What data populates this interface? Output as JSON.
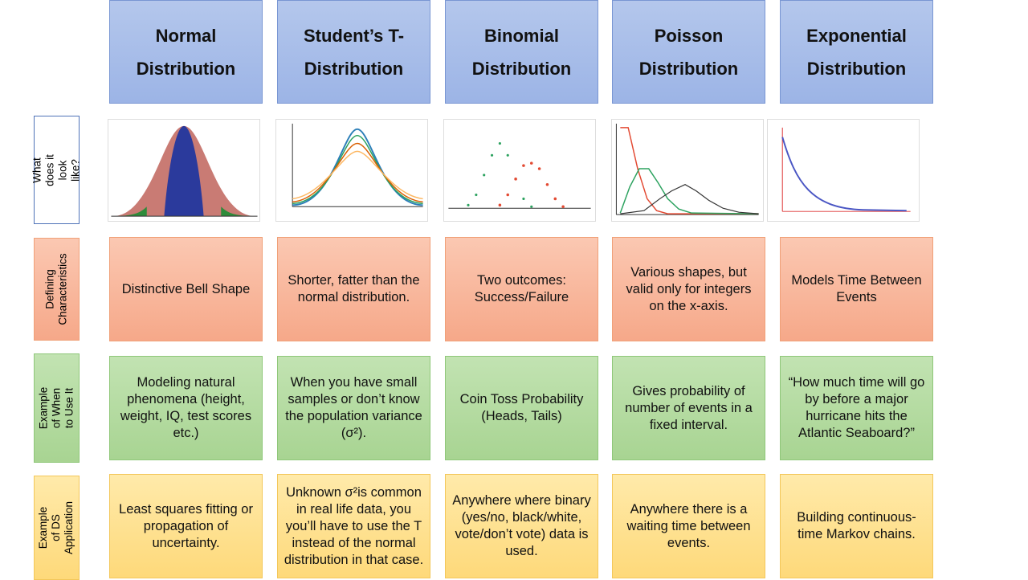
{
  "row_labels": [
    "What does it look like?",
    "Defining Characteristics",
    "Example of When to Use It",
    "Example of DS Application"
  ],
  "columns": [
    {
      "header": [
        "Normal",
        "Distribution"
      ],
      "characteristics": "Distinctive Bell Shape",
      "example": "Modeling natural phenomena (height, weight, IQ, test scores etc.)",
      "application": "Least squares fitting or propagation of uncertainty."
    },
    {
      "header": [
        "Student’s T-",
        "Distribution"
      ],
      "characteristics": "Shorter, fatter than the normal distribution.",
      "example": "When you have small samples or don’t know the population variance (σ²).",
      "application": "Unknown σ²is common in real life data, you you’ll have to use the T instead of the normal distribution in that case."
    },
    {
      "header": [
        "Binomial",
        "Distribution"
      ],
      "characteristics": "Two outcomes: Success/Failure",
      "example": "Coin Toss Probability (Heads, Tails)",
      "application": "Anywhere where binary (yes/no, black/white, vote/don’t vote) data is used."
    },
    {
      "header": [
        "Poisson",
        "Distribution"
      ],
      "characteristics": "Various shapes, but valid only for integers on the x-axis.",
      "example": "Gives probability of number of events in a fixed interval.",
      "application": "Anywhere there is a waiting time between events."
    },
    {
      "header": [
        "Exponential",
        "Distribution"
      ],
      "characteristics": "Models Time Between Events",
      "example": "“How much time will go by before a major hurricane hits the Atlantic Seaboard?”",
      "application": "Building continuous-time Markov chains."
    }
  ]
}
